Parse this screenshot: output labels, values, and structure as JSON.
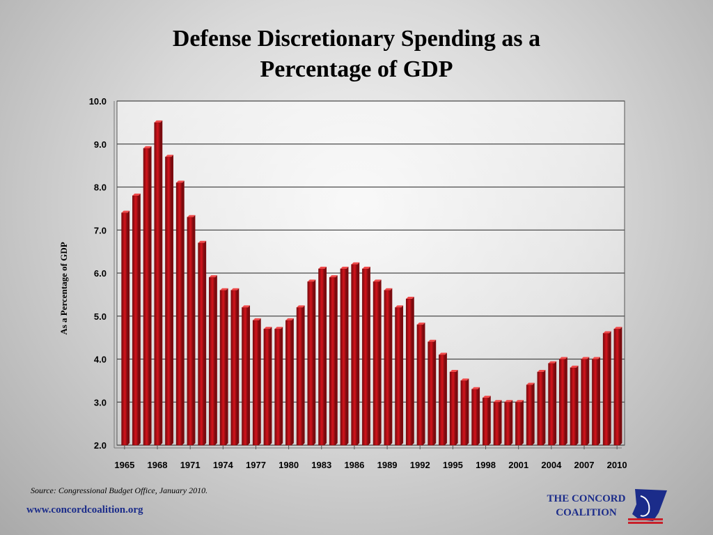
{
  "title": {
    "line1": "Defense Discretionary Spending as a",
    "line2": "Percentage of GDP"
  },
  "footer": {
    "source": "Source: Congressional Budget Office, January 2010.",
    "url": "www.concordcoalition.org",
    "logo_line1": "THE CONCORD",
    "logo_line2": "COALITION"
  },
  "colors": {
    "bar": "#d4141c",
    "bar_dark": "#7a0a0e",
    "bar_light": "#f04a4a",
    "grid": "#4a4a4a",
    "logo_blue": "#1b2c8a",
    "logo_red": "#c8202a"
  },
  "chart_data": {
    "type": "bar",
    "title": "Defense Discretionary Spending as a Percentage of GDP",
    "xlabel": "",
    "ylabel": "As a Percentage of GDP",
    "ylim": [
      2.0,
      10.0
    ],
    "yticks": [
      "2.0",
      "3.0",
      "4.0",
      "5.0",
      "6.0",
      "7.0",
      "8.0",
      "9.0",
      "10.0"
    ],
    "xtick_labels": [
      "1965",
      "1968",
      "1971",
      "1974",
      "1977",
      "1980",
      "1983",
      "1986",
      "1989",
      "1992",
      "1995",
      "1998",
      "2001",
      "2004",
      "2007",
      "2010"
    ],
    "grid": true,
    "legend": "none",
    "categories": [
      "1965",
      "1966",
      "1967",
      "1968",
      "1969",
      "1970",
      "1971",
      "1972",
      "1973",
      "1974",
      "1975",
      "1976",
      "1977",
      "1978",
      "1979",
      "1980",
      "1981",
      "1982",
      "1983",
      "1984",
      "1985",
      "1986",
      "1987",
      "1988",
      "1989",
      "1990",
      "1991",
      "1992",
      "1993",
      "1994",
      "1995",
      "1996",
      "1997",
      "1998",
      "1999",
      "2000",
      "2001",
      "2002",
      "2003",
      "2004",
      "2005",
      "2006",
      "2007",
      "2008",
      "2009",
      "2010"
    ],
    "values": [
      7.4,
      7.8,
      8.9,
      9.5,
      8.7,
      8.1,
      7.3,
      6.7,
      5.9,
      5.6,
      5.6,
      5.2,
      4.9,
      4.7,
      4.7,
      4.9,
      5.2,
      5.8,
      6.1,
      5.9,
      6.1,
      6.2,
      6.1,
      5.8,
      5.6,
      5.2,
      5.4,
      4.8,
      4.4,
      4.1,
      3.7,
      3.5,
      3.3,
      3.1,
      3.0,
      3.0,
      3.0,
      3.4,
      3.7,
      3.9,
      4.0,
      3.8,
      4.0,
      4.0,
      4.6,
      4.7
    ]
  }
}
